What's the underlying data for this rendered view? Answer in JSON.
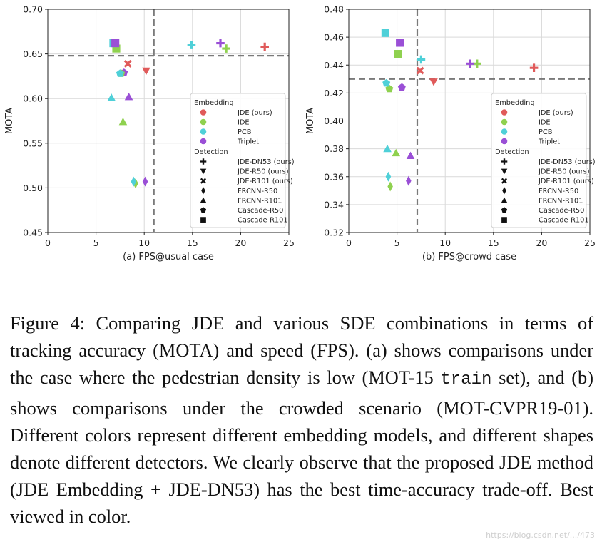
{
  "chart_data": [
    {
      "type": "scatter",
      "title": "",
      "xlabel": "(a) FPS@usual case",
      "ylabel": "MOTA",
      "xlim": [
        0,
        25
      ],
      "ylim": [
        0.45,
        0.7
      ],
      "xticks": [
        0,
        5,
        10,
        15,
        20,
        25
      ],
      "xtick_labels": [
        "0",
        "5",
        "10",
        "15",
        "20",
        "25"
      ],
      "yticks": [
        0.45,
        0.5,
        0.55,
        0.6,
        0.65,
        0.7
      ],
      "ytick_labels": [
        "0.45",
        "0.50",
        "0.55",
        "0.60",
        "0.65",
        "0.70"
      ],
      "grid": true,
      "reference_lines": {
        "x": 11.0,
        "y": 0.648
      },
      "legend_position": "lower-right",
      "points": [
        {
          "embedding": "JDE (ours)",
          "detector": "JDE-DN53 (ours)",
          "x": 22.5,
          "y": 0.658
        },
        {
          "embedding": "IDE",
          "detector": "JDE-DN53 (ours)",
          "x": 18.5,
          "y": 0.656
        },
        {
          "embedding": "PCB",
          "detector": "JDE-DN53 (ours)",
          "x": 14.9,
          "y": 0.66
        },
        {
          "embedding": "Triplet",
          "detector": "JDE-DN53 (ours)",
          "x": 17.9,
          "y": 0.662
        },
        {
          "embedding": "JDE (ours)",
          "detector": "JDE-R50 (ours)",
          "x": 10.2,
          "y": 0.631
        },
        {
          "embedding": "JDE (ours)",
          "detector": "JDE-R101 (ours)",
          "x": 8.3,
          "y": 0.639
        },
        {
          "embedding": "Triplet",
          "detector": "FRCNN-R50",
          "x": 10.1,
          "y": 0.507
        },
        {
          "embedding": "IDE",
          "detector": "FRCNN-R50",
          "x": 9.1,
          "y": 0.505
        },
        {
          "embedding": "PCB",
          "detector": "FRCNN-R50",
          "x": 8.9,
          "y": 0.507
        },
        {
          "embedding": "Triplet",
          "detector": "FRCNN-R101",
          "x": 8.4,
          "y": 0.602
        },
        {
          "embedding": "PCB",
          "detector": "FRCNN-R101",
          "x": 6.6,
          "y": 0.601
        },
        {
          "embedding": "IDE",
          "detector": "FRCNN-R101",
          "x": 7.8,
          "y": 0.574
        },
        {
          "embedding": "Triplet",
          "detector": "Cascade-R50",
          "x": 7.9,
          "y": 0.629
        },
        {
          "embedding": "IDE",
          "detector": "Cascade-R50",
          "x": 7.6,
          "y": 0.628
        },
        {
          "embedding": "PCB",
          "detector": "Cascade-R50",
          "x": 7.5,
          "y": 0.628
        },
        {
          "embedding": "IDE",
          "detector": "Cascade-R101",
          "x": 7.1,
          "y": 0.656
        },
        {
          "embedding": "PCB",
          "detector": "Cascade-R101",
          "x": 6.8,
          "y": 0.662
        },
        {
          "embedding": "Triplet",
          "detector": "Cascade-R101",
          "x": 7.0,
          "y": 0.662
        }
      ]
    },
    {
      "type": "scatter",
      "title": "",
      "xlabel": "(b) FPS@crowd case",
      "ylabel": "MOTA",
      "xlim": [
        0,
        25
      ],
      "ylim": [
        0.32,
        0.48
      ],
      "xticks": [
        0,
        5,
        10,
        15,
        20,
        25
      ],
      "xtick_labels": [
        "0",
        "5",
        "10",
        "15",
        "20",
        "25"
      ],
      "yticks": [
        0.32,
        0.34,
        0.36,
        0.38,
        0.4,
        0.42,
        0.44,
        0.46,
        0.48
      ],
      "ytick_labels": [
        "0.32",
        "0.34",
        "0.36",
        "0.38",
        "0.40",
        "0.42",
        "0.44",
        "0.46",
        "0.48"
      ],
      "grid": true,
      "reference_lines": {
        "x": 7.1,
        "y": 0.43
      },
      "legend_position": "lower-right",
      "points": [
        {
          "embedding": "JDE (ours)",
          "detector": "JDE-DN53 (ours)",
          "x": 19.2,
          "y": 0.438
        },
        {
          "embedding": "IDE",
          "detector": "JDE-DN53 (ours)",
          "x": 13.3,
          "y": 0.441
        },
        {
          "embedding": "Triplet",
          "detector": "JDE-DN53 (ours)",
          "x": 12.6,
          "y": 0.441
        },
        {
          "embedding": "PCB",
          "detector": "JDE-DN53 (ours)",
          "x": 7.5,
          "y": 0.444
        },
        {
          "embedding": "JDE (ours)",
          "detector": "JDE-R50 (ours)",
          "x": 8.8,
          "y": 0.428
        },
        {
          "embedding": "JDE (ours)",
          "detector": "JDE-R101 (ours)",
          "x": 7.4,
          "y": 0.436
        },
        {
          "embedding": "Triplet",
          "detector": "FRCNN-R50",
          "x": 6.2,
          "y": 0.357
        },
        {
          "embedding": "PCB",
          "detector": "FRCNN-R50",
          "x": 4.1,
          "y": 0.36
        },
        {
          "embedding": "IDE",
          "detector": "FRCNN-R50",
          "x": 4.3,
          "y": 0.353
        },
        {
          "embedding": "Triplet",
          "detector": "FRCNN-R101",
          "x": 6.4,
          "y": 0.375
        },
        {
          "embedding": "IDE",
          "detector": "FRCNN-R101",
          "x": 4.9,
          "y": 0.377
        },
        {
          "embedding": "PCB",
          "detector": "FRCNN-R101",
          "x": 4.0,
          "y": 0.38
        },
        {
          "embedding": "Triplet",
          "detector": "Cascade-R50",
          "x": 5.5,
          "y": 0.424
        },
        {
          "embedding": "IDE",
          "detector": "Cascade-R50",
          "x": 4.2,
          "y": 0.423
        },
        {
          "embedding": "PCB",
          "detector": "Cascade-R50",
          "x": 3.9,
          "y": 0.427
        },
        {
          "embedding": "PCB",
          "detector": "Cascade-R101",
          "x": 3.8,
          "y": 0.463
        },
        {
          "embedding": "Triplet",
          "detector": "Cascade-R101",
          "x": 5.3,
          "y": 0.456
        },
        {
          "embedding": "IDE",
          "detector": "Cascade-R101",
          "x": 5.1,
          "y": 0.448
        }
      ]
    }
  ],
  "legend": {
    "embedding_title": "Embedding",
    "embeddings": [
      {
        "name": "JDE (ours)",
        "color": "#e05a5a"
      },
      {
        "name": "IDE",
        "color": "#8fd14f"
      },
      {
        "name": "PCB",
        "color": "#4fd0d8"
      },
      {
        "name": "Triplet",
        "color": "#9a4fd6"
      }
    ],
    "detection_title": "Detection",
    "detectors": [
      {
        "name": "JDE-DN53 (ours)",
        "marker": "plus"
      },
      {
        "name": "JDE-R50 (ours)",
        "marker": "triangle-down"
      },
      {
        "name": "JDE-R101 (ours)",
        "marker": "x"
      },
      {
        "name": "FRCNN-R50",
        "marker": "diamond"
      },
      {
        "name": "FRCNN-R101",
        "marker": "triangle-up"
      },
      {
        "name": "Cascade-R50",
        "marker": "pentagon"
      },
      {
        "name": "Cascade-R101",
        "marker": "square"
      }
    ]
  },
  "caption": {
    "part1": "Figure 4: Comparing JDE and various SDE combinations in terms of tracking accuracy (MOTA) and speed (FPS). (a) shows comparisons under the case where the pedestrian density is low (MOT-15 ",
    "mono": "train",
    "part2": " set), and (b) shows comparisons under the crowded scenario (MOT-CVPR19-01). Different colors represent different embedding models, and different shapes denote different detectors. We clearly observe that the proposed JDE method (JDE Embedding + JDE-DN53) has the best time-accuracy trade-off. Best viewed in color."
  },
  "watermark": "https://blog.csdn.net/.../473"
}
